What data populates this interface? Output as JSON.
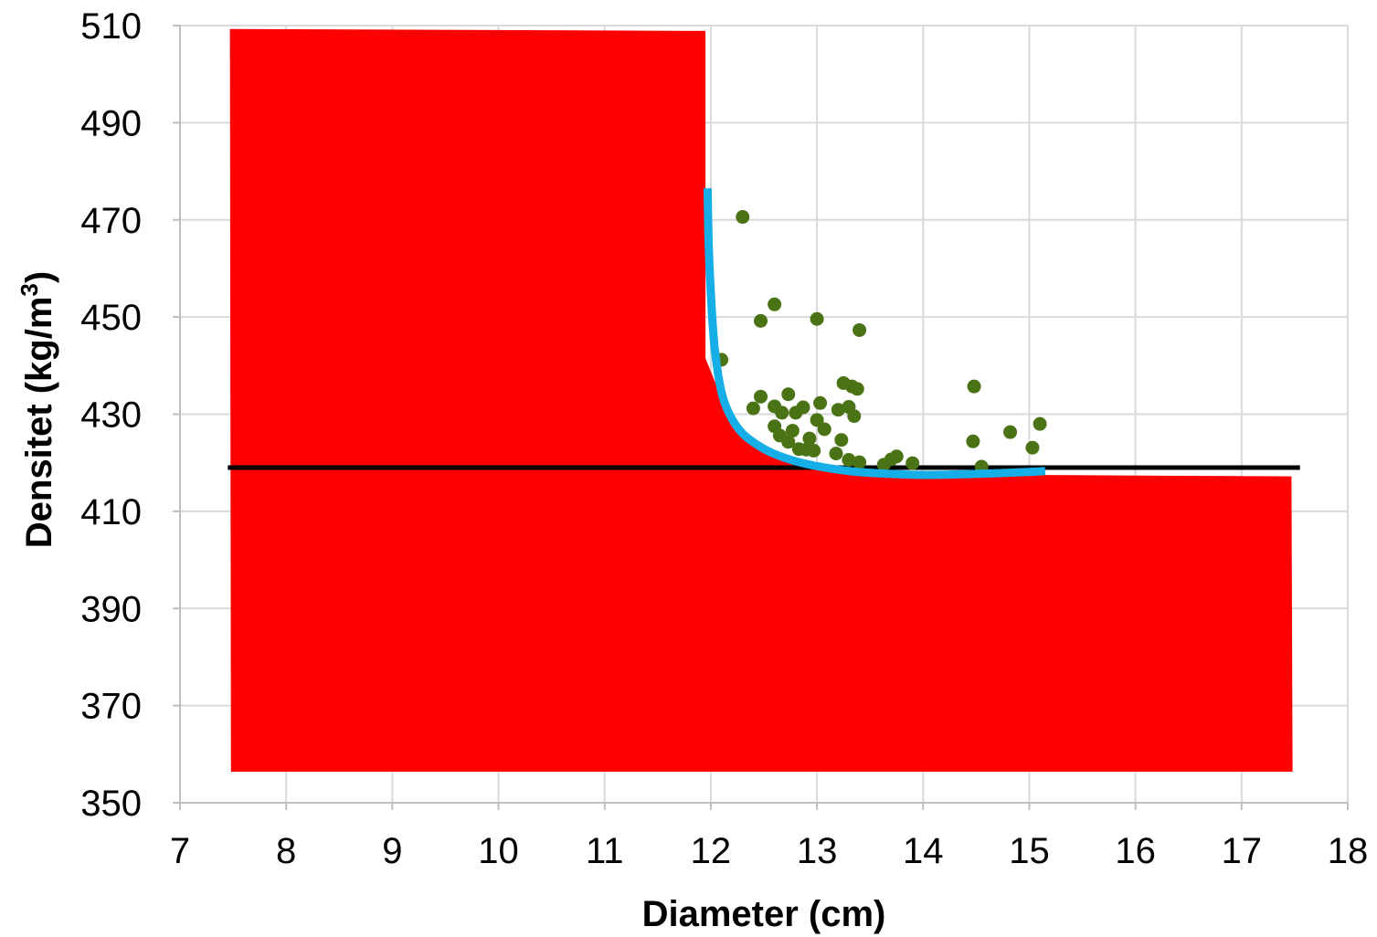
{
  "chart_data": {
    "type": "scatter",
    "title": "",
    "xlabel": "Diameter (cm)",
    "ylabel_main": "Densitet (kg/m",
    "ylabel_sup": "3",
    "ylabel_close": ")",
    "xlim": [
      7,
      18
    ],
    "ylim": [
      350,
      510
    ],
    "xticks": [
      7,
      8,
      9,
      10,
      11,
      12,
      13,
      14,
      15,
      16,
      17,
      18
    ],
    "yticks": [
      350,
      370,
      390,
      410,
      430,
      450,
      470,
      490,
      510
    ],
    "grid": true,
    "legend": "none",
    "colors": {
      "fill": "#ff0000",
      "points": "#4a7316",
      "curve": "#16aee6",
      "reference_line": "#000000",
      "grid": "#d9d9d9",
      "axis": "#bfbfbf"
    },
    "filled_region": {
      "points": [
        [
          7.47,
          509.3
        ],
        [
          11.95,
          508.9
        ],
        [
          11.95,
          441.5
        ],
        [
          12.2,
          428
        ],
        [
          12.6,
          422
        ],
        [
          13.2,
          418.5
        ],
        [
          14.0,
          417.6
        ],
        [
          15.0,
          417.5
        ],
        [
          16.5,
          417.3
        ],
        [
          17.47,
          417.2
        ],
        [
          17.48,
          356.4
        ],
        [
          7.48,
          356.4
        ]
      ]
    },
    "reference_line": {
      "y": 419,
      "x_start": 7.45,
      "x_end": 17.55
    },
    "fitted_curve": {
      "points": [
        [
          11.97,
          476.5
        ],
        [
          11.98,
          465
        ],
        [
          12.0,
          455
        ],
        [
          12.03,
          445
        ],
        [
          12.07,
          438
        ],
        [
          12.12,
          433
        ],
        [
          12.2,
          429
        ],
        [
          12.3,
          426
        ],
        [
          12.45,
          423.5
        ],
        [
          12.6,
          421.8
        ],
        [
          12.8,
          420.3
        ],
        [
          13.0,
          419.3
        ],
        [
          13.3,
          418.3
        ],
        [
          13.6,
          417.8
        ],
        [
          14.0,
          417.5
        ],
        [
          14.5,
          417.7
        ],
        [
          15.0,
          418.1
        ],
        [
          15.15,
          418.3
        ]
      ]
    },
    "series": [
      {
        "points": [
          [
            12.3,
            470.6
          ],
          [
            12.6,
            452.6
          ],
          [
            12.47,
            449.2
          ],
          [
            13.0,
            449.6
          ],
          [
            13.4,
            447.3
          ],
          [
            12.1,
            441.2
          ],
          [
            12.47,
            433.6
          ],
          [
            12.4,
            431.2
          ],
          [
            12.6,
            431.6
          ],
          [
            12.73,
            434.1
          ],
          [
            12.67,
            430.3
          ],
          [
            12.8,
            430.3
          ],
          [
            12.87,
            431.4
          ],
          [
            13.03,
            432.3
          ],
          [
            13.2,
            430.9
          ],
          [
            13.25,
            436.4
          ],
          [
            13.3,
            431.5
          ],
          [
            13.33,
            435.7
          ],
          [
            13.38,
            435.2
          ],
          [
            13.35,
            429.6
          ],
          [
            12.6,
            427.5
          ],
          [
            12.65,
            425.6
          ],
          [
            12.77,
            426.6
          ],
          [
            12.73,
            424.3
          ],
          [
            12.93,
            425
          ],
          [
            13.0,
            428.8
          ],
          [
            13.07,
            426.9
          ],
          [
            13.23,
            424.7
          ],
          [
            12.83,
            422.8
          ],
          [
            12.9,
            422.7
          ],
          [
            12.97,
            422.5
          ],
          [
            13.18,
            421.9
          ],
          [
            13.3,
            420.6
          ],
          [
            13.4,
            420.1
          ],
          [
            13.63,
            419.6
          ],
          [
            13.7,
            420.7
          ],
          [
            13.75,
            421.3
          ],
          [
            13.9,
            419.9
          ],
          [
            14.48,
            435.7
          ],
          [
            14.47,
            424.4
          ],
          [
            14.55,
            419.2
          ],
          [
            14.82,
            426.3
          ],
          [
            15.03,
            423.1
          ],
          [
            15.1,
            428
          ]
        ]
      }
    ]
  }
}
